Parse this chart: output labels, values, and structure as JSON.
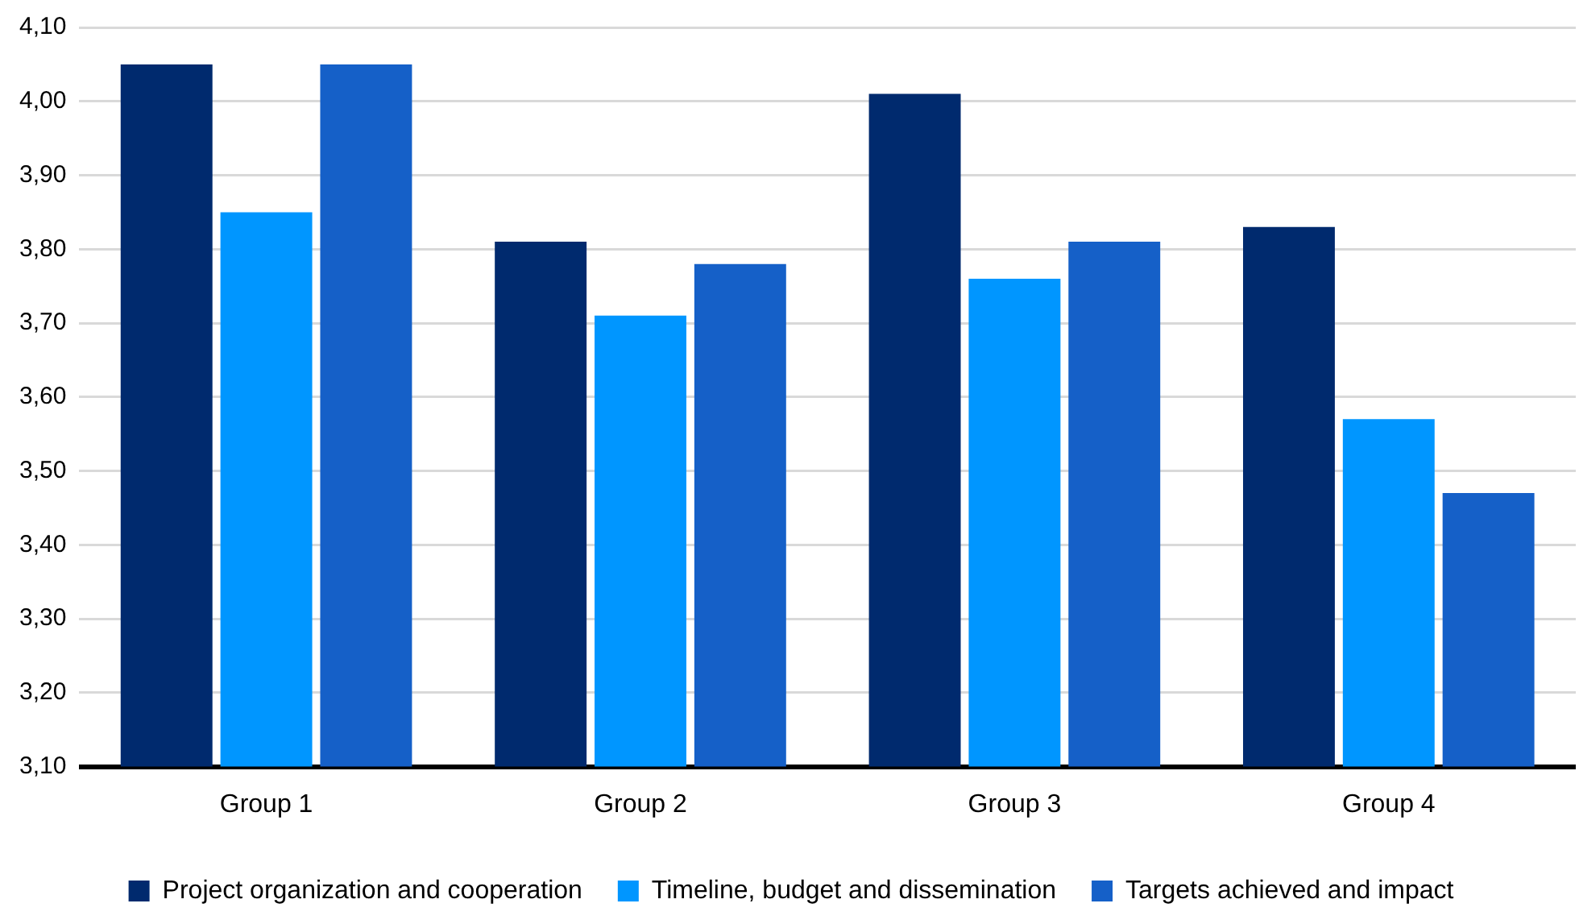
{
  "chart_data": {
    "type": "bar",
    "categories": [
      "Group 1",
      "Group 2",
      "Group 3",
      "Group 4"
    ],
    "series": [
      {
        "name": "Project organization and cooperation",
        "color": "#002a6e",
        "values": [
          4.05,
          3.81,
          4.01,
          3.83
        ]
      },
      {
        "name": "Timeline, budget and dissemination",
        "color": "#0096ff",
        "values": [
          3.85,
          3.71,
          3.76,
          3.57
        ]
      },
      {
        "name": "Targets achieved and impact",
        "color": "#1560c8",
        "values": [
          4.05,
          3.78,
          3.81,
          3.47
        ]
      }
    ],
    "ylim": [
      3.1,
      4.1
    ],
    "yticks": [
      {
        "value": 3.1,
        "label": "3,10"
      },
      {
        "value": 3.2,
        "label": "3,20"
      },
      {
        "value": 3.3,
        "label": "3,30"
      },
      {
        "value": 3.4,
        "label": "3,40"
      },
      {
        "value": 3.5,
        "label": "3,50"
      },
      {
        "value": 3.6,
        "label": "3,60"
      },
      {
        "value": 3.7,
        "label": "3,70"
      },
      {
        "value": 3.8,
        "label": "3,80"
      },
      {
        "value": 3.9,
        "label": "3,90"
      },
      {
        "value": 4.0,
        "label": "4,00"
      },
      {
        "value": 4.1,
        "label": "4,10"
      }
    ],
    "grid": "y",
    "legend": "bottom"
  }
}
